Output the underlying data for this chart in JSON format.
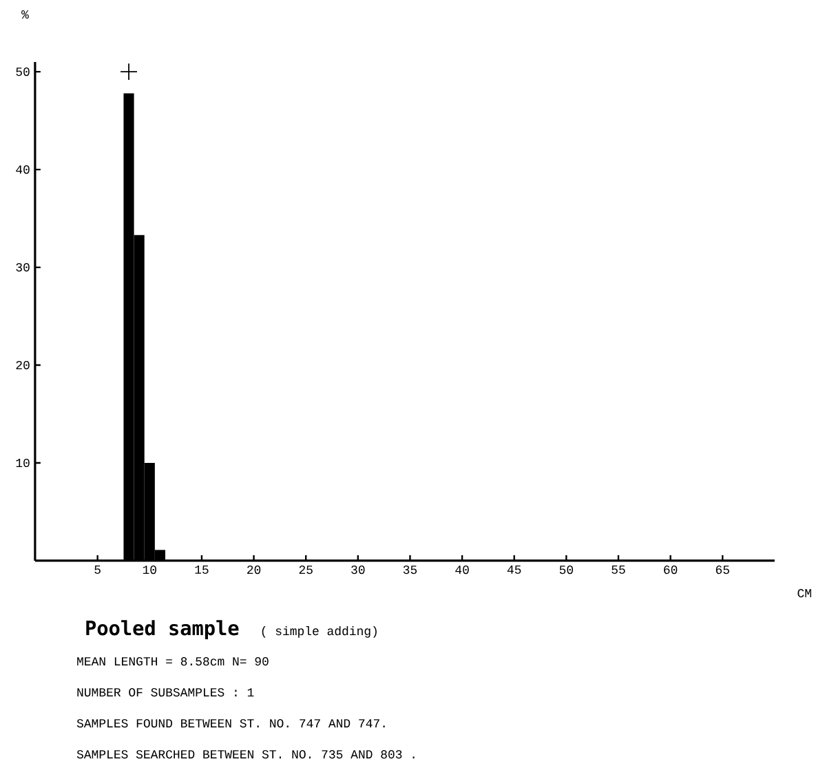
{
  "chart_data": {
    "type": "histogram",
    "title": "Pooled sample",
    "subtitle": "( simple adding)",
    "xlabel": "CM",
    "ylabel": "%",
    "series": [
      {
        "color": "#000000",
        "bins": [
          7.5,
          8.5,
          9.5,
          10.5,
          11.5
        ],
        "values": [
          47.8,
          33.3,
          10,
          1.1
        ]
      },
      {
        "type": "scatter",
        "color": "#000000",
        "marker": "cross",
        "x": [
          8
        ],
        "values": [
          50
        ]
      }
    ],
    "xlim": [
      -1,
      70
    ],
    "xticks": [
      5,
      10,
      15,
      20,
      25,
      30,
      35,
      40,
      45,
      50,
      55,
      60,
      65
    ],
    "ylim": [
      0,
      51
    ],
    "yticks": [
      10,
      20,
      30,
      40,
      50
    ],
    "grid": false,
    "annotations": [
      "MEAN LENGTH =  8.58cm  N=   90",
      "NUMBER OF SUBSAMPLES :  1",
      "SAMPLES FOUND BETWEEN ST. NO. 747 AND  747.",
      "SAMPLES SEARCHED BETWEEN ST. NO. 735 AND  803 ."
    ]
  }
}
